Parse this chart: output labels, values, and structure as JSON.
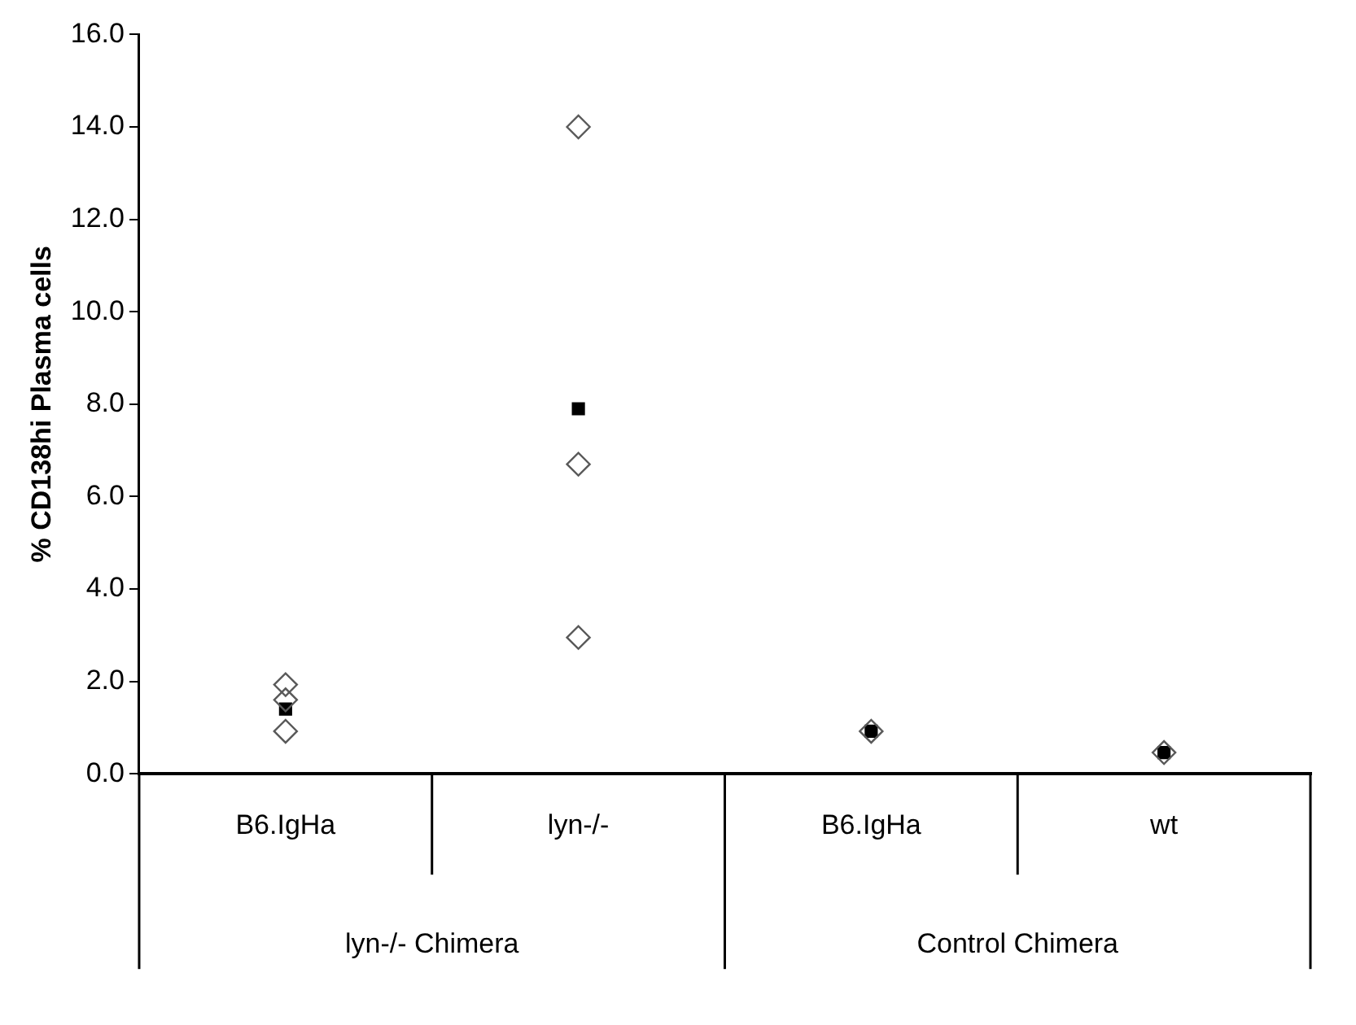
{
  "chart_data": {
    "type": "scatter",
    "ylabel": "% CD138hi Plasma cells",
    "categories": [
      "B6.IgHa",
      "lyn-/-",
      "B6.IgHa",
      "wt"
    ],
    "annotations": [
      "lyn-/- Chimera",
      "Control Chimera"
    ],
    "series": [
      {
        "color": "#595959",
        "marker": "diamond",
        "values": [
          1.93,
          14.0,
          0.92,
          0.46
        ]
      },
      {
        "color": "#595959",
        "marker": "diamond",
        "values": [
          1.6,
          6.7,
          null,
          null
        ]
      },
      {
        "color": "#595959",
        "marker": "diamond",
        "values": [
          0.92,
          2.95,
          null,
          null
        ]
      },
      {
        "color": "#000000",
        "marker": "square",
        "values": [
          1.4,
          7.9,
          0.92,
          0.46
        ]
      }
    ],
    "ylim": [
      0,
      16
    ],
    "yticks": [
      {
        "value": 0,
        "label": "0.0"
      },
      {
        "value": 2,
        "label": "2.0"
      },
      {
        "value": 4,
        "label": "4.0"
      },
      {
        "value": 6,
        "label": "6.0"
      },
      {
        "value": 8,
        "label": "8.0"
      },
      {
        "value": 10,
        "label": "10.0"
      },
      {
        "value": 12,
        "label": "12.0"
      },
      {
        "value": 14,
        "label": "14.0"
      },
      {
        "value": 16,
        "label": "16.0"
      }
    ],
    "grid": false,
    "legend": false
  }
}
